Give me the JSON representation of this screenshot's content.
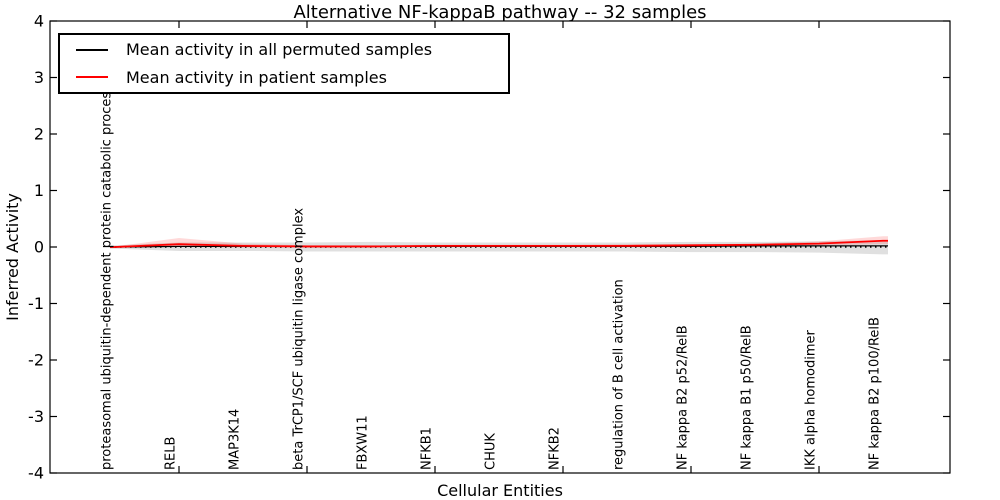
{
  "figure": {
    "title": "Alternative NF-kappaB pathway -- 32 samples",
    "xlabel": "Cellular Entities",
    "ylabel": "Inferred Activity"
  },
  "legend": {
    "entries": [
      {
        "label": "Mean activity in all permuted samples",
        "color": "#000000"
      },
      {
        "label": "Mean activity in patient samples",
        "color": "#ff0000"
      }
    ]
  },
  "chart_data": {
    "type": "line",
    "title": "Alternative NF-kappaB pathway -- 32 samples",
    "xlabel": "Cellular Entities",
    "ylabel": "Inferred Activity",
    "ylim": [
      -4,
      4
    ],
    "yticks": [
      -4,
      -3,
      -2,
      -1,
      0,
      1,
      2,
      3,
      4
    ],
    "yticklabels": [
      "-4",
      "-3",
      "-2",
      "-1",
      "0",
      "1",
      "2",
      "3",
      "4"
    ],
    "grid": false,
    "legend_position": "upper left",
    "zero_line": {
      "y": 0,
      "style": "dotted",
      "color": "#000000"
    },
    "categories": [
      "proteasomal ubiquitin-dependent protein catabolic process",
      "RELB",
      "MAP3K14",
      "beta TrCP1/SCF ubiquitin ligase complex",
      "FBXW11",
      "NFKB1",
      "CHUK",
      "NFKB2",
      "regulation of B cell activation",
      "NF kappa B2 p52/RelB",
      "NF kappa B1 p50/RelB",
      "IKK alpha homodimer",
      "NF kappa B2 p100/RelB"
    ],
    "series": [
      {
        "name": "Mean activity in all permuted samples",
        "color": "#000000",
        "line_width": 1.2,
        "values": [
          0.0,
          0.01,
          0.01,
          0.01,
          0.01,
          0.01,
          0.01,
          0.01,
          0.01,
          0.01,
          0.02,
          0.02,
          0.02
        ],
        "band_upper": [
          0.03,
          0.08,
          0.08,
          0.08,
          0.09,
          0.08,
          0.08,
          0.08,
          0.08,
          0.09,
          0.09,
          0.1,
          0.12
        ],
        "band_lower": [
          -0.03,
          -0.07,
          -0.07,
          -0.08,
          -0.08,
          -0.08,
          -0.08,
          -0.08,
          -0.08,
          -0.09,
          -0.09,
          -0.1,
          -0.13
        ],
        "band_color": "#000000",
        "band_opacity": 0.12
      },
      {
        "name": "Mean activity in patient samples",
        "color": "#ff0000",
        "line_width": 1.8,
        "values": [
          0.0,
          0.05,
          0.02,
          0.01,
          0.01,
          0.02,
          0.02,
          0.02,
          0.02,
          0.03,
          0.04,
          0.06,
          0.11
        ],
        "band_upper": [
          0.01,
          0.16,
          0.06,
          0.03,
          0.03,
          0.04,
          0.04,
          0.04,
          0.05,
          0.05,
          0.06,
          0.1,
          0.19
        ],
        "band_lower": [
          -0.01,
          0.0,
          -0.01,
          -0.01,
          -0.01,
          0.0,
          0.0,
          0.0,
          0.01,
          0.01,
          0.02,
          0.03,
          0.05
        ],
        "band_color": "#ff0000",
        "band_opacity": 0.15
      }
    ]
  }
}
